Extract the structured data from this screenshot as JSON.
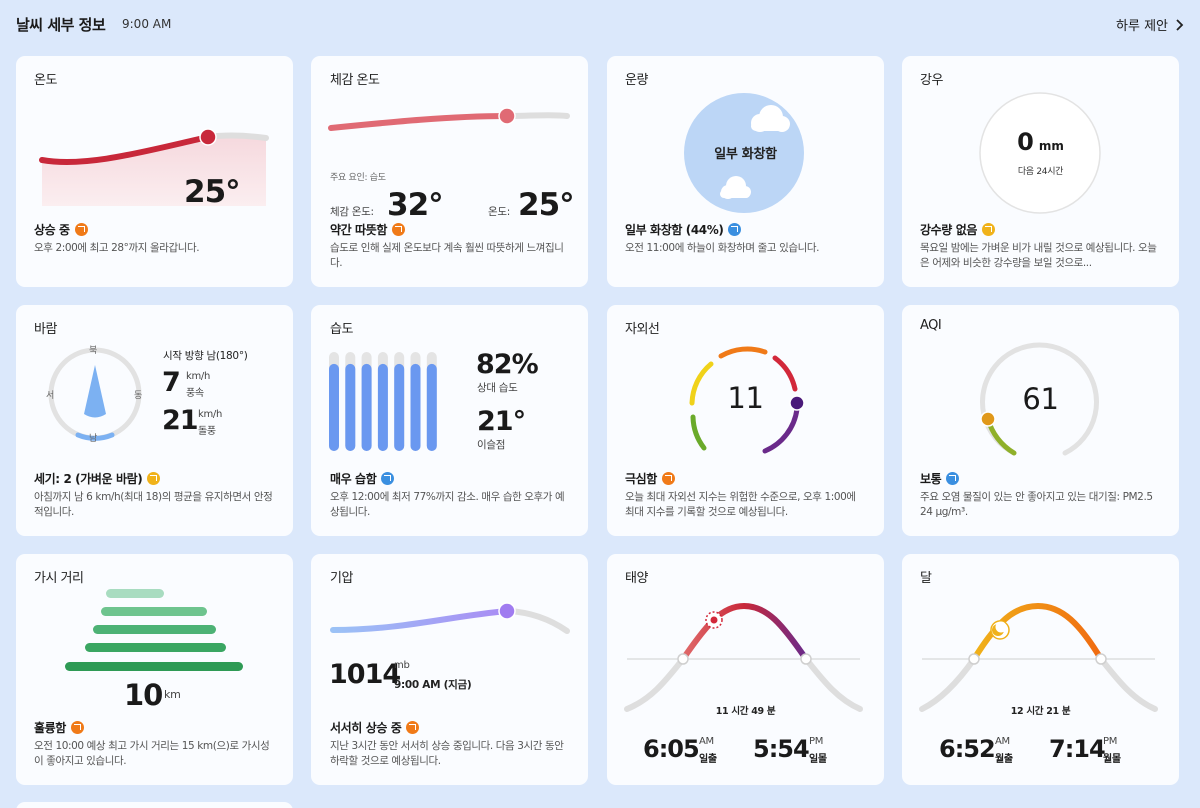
{
  "header": {
    "title": "날씨 세부 정보",
    "time": "9:00 AM",
    "link_label": "하루 제안"
  },
  "cards": {
    "temperature": {
      "title": "온도",
      "value": "25°",
      "summary": "상승 중",
      "desc": "오후 2:00에 최고 28°까지 올라갑니다."
    },
    "feels_like": {
      "title": "체감 온도",
      "factor": "주요 요인: 습도",
      "feels_label": "체감 온도:",
      "feels_value": "32°",
      "temp_label": "온도:",
      "temp_value": "25°",
      "summary": "약간 따뜻함",
      "desc": "습도로 인해 실제 온도보다 계속 훨씬 따뜻하게 느껴집니다."
    },
    "cloud": {
      "title": "운량",
      "circle_text": "일부 화창함",
      "summary": "일부 화창함 (44%)",
      "desc": "오전 11:00에 하늘이 화창하며 줄고 있습니다."
    },
    "precip": {
      "title": "강우",
      "value": "0",
      "unit": "mm",
      "sub": "다음 24시간",
      "summary": "강수량 없음",
      "desc": "목요일 밤에는 가벼운 비가 내릴 것으로 예상됩니다. 오늘은 어제와 비슷한 강수량을 보일 것으로..."
    },
    "wind": {
      "title": "바람",
      "n": "북",
      "s": "남",
      "e": "동",
      "w": "서",
      "from": "시작 방향 남(180°)",
      "speed": "7",
      "speed_unit": "km/h",
      "speed_label": "풍속",
      "gust": "21",
      "gust_unit": "km/h",
      "gust_label": "돌풍",
      "summary": "세기: 2 (가벼운 바람)",
      "desc": "아침까지 남 6 km/h(최대 18)의 평균을 유지하면서 안정적입니다."
    },
    "humidity": {
      "title": "습도",
      "value": "82%",
      "value_label": "상대 습도",
      "dew": "21°",
      "dew_label": "이슬점",
      "summary": "매우 습함",
      "desc": "오후 12:00에 최저 77%까지 감소. 매우 습한 오후가 예상됩니다.",
      "bar_levels": [
        0.88,
        0.88,
        0.88,
        0.88,
        0.88,
        0.88,
        0.88
      ]
    },
    "uv": {
      "title": "자외선",
      "value": "11",
      "summary": "극심함",
      "desc": "오늘 최대 자외선 지수는 위험한 수준으로, 오후 1:00에 최대 지수를 기록할 것으로 예상됩니다."
    },
    "aqi": {
      "title": "AQI",
      "value": "61",
      "summary": "보통",
      "desc": "주요 오염 물질이 있는 안 좋아지고 있는 대기질: PM2.5 24 µg/m³."
    },
    "visibility": {
      "title": "가시 거리",
      "value": "10",
      "unit": "km",
      "summary": "훌륭함",
      "desc": "오전 10:00 예상 최고 가시 거리는 15 km(으)로 가시성이 좋아지고 있습니다."
    },
    "pressure": {
      "title": "기압",
      "value": "1014",
      "unit": "mb",
      "time": "9:00 AM (지금)",
      "summary": "서서히 상승 중",
      "desc": "지난 3시간 동안 서서히 상승 중입니다. 다음 3시간 동안 하락할 것으로 예상됩니다."
    },
    "sun": {
      "title": "태양",
      "duration": "11 시간 49 분",
      "rise_time": "6:05",
      "rise_ampm": "AM",
      "rise_label": "일출",
      "set_time": "5:54",
      "set_ampm": "PM",
      "set_label": "일몰"
    },
    "moon": {
      "title": "달",
      "duration": "12 시간 21 분",
      "rise_time": "6:52",
      "rise_ampm": "AM",
      "rise_label": "월출",
      "set_time": "7:14",
      "set_ampm": "PM",
      "set_label": "월몰"
    }
  },
  "colors": {
    "accent_red": "#c8283a",
    "bar_blue": "#6a98f0",
    "arrow_orange": "#f07a18",
    "arrow_blue": "#3a8fe0",
    "arrow_yellow": "#f0b21a"
  }
}
